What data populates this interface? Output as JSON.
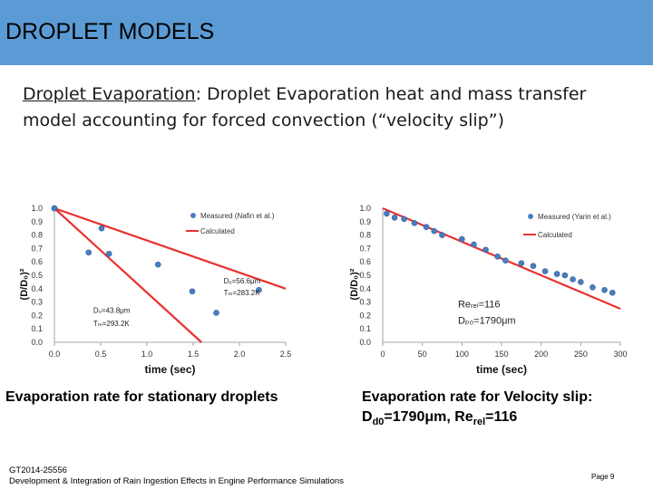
{
  "header": {
    "title": "DROPLET MODELS"
  },
  "intro": {
    "label": "Droplet Evaporation",
    "text": ": Droplet Evaporation heat and mass transfer model accounting for forced convection (“velocity slip”)"
  },
  "chart_data": [
    {
      "type": "scatter",
      "title": "",
      "xlabel": "time (sec)",
      "ylabel": "(D/D₀)²",
      "xlim": [
        0.0,
        2.5
      ],
      "ylim": [
        0.0,
        1.0
      ],
      "xticks": [
        "0.0",
        "0.5",
        "1.0",
        "1.5",
        "2.0",
        "2.5"
      ],
      "yticks": [
        "0.0",
        "0.1",
        "0.2",
        "0.3",
        "0.4",
        "0.5",
        "0.6",
        "0.7",
        "0.8",
        "0.9",
        "1.0"
      ],
      "legend": [
        "Measured (Nafin et al.)",
        "Calculated"
      ],
      "series": [
        {
          "name": "Measured (Nafin et al.)",
          "kind": "points",
          "x": [
            0.0,
            0.51,
            0.59,
            1.49,
            2.21,
            0.0,
            0.37,
            1.12,
            1.75
          ],
          "y": [
            1.0,
            0.85,
            0.66,
            0.38,
            0.39,
            1.0,
            0.67,
            0.58,
            0.22
          ]
        },
        {
          "name": "Calculated",
          "kind": "line",
          "segments": [
            {
              "x": [
                0.0,
                1.59
              ],
              "y": [
                1.0,
                0.0
              ]
            },
            {
              "x": [
                0.0,
                2.5
              ],
              "y": [
                1.0,
                0.4
              ]
            }
          ]
        }
      ],
      "annotations": [
        {
          "text": "D₀=56.6μm",
          "x": 1.83,
          "y": 0.44
        },
        {
          "text": "Tₘ=283.2K",
          "x": 1.83,
          "y": 0.35
        },
        {
          "text": "D₀=43.8μm",
          "x": 0.42,
          "y": 0.22
        },
        {
          "text": "Tₘ=293.2K",
          "x": 0.42,
          "y": 0.12
        }
      ]
    },
    {
      "type": "scatter",
      "title": "",
      "xlabel": "time (sec)",
      "ylabel": "(D/D₀)²",
      "xlim": [
        0,
        300
      ],
      "ylim": [
        0.0,
        1.0
      ],
      "xticks": [
        "0",
        "50",
        "100",
        "150",
        "200",
        "250",
        "300"
      ],
      "yticks": [
        "0.0",
        "0.1",
        "0.2",
        "0.3",
        "0.4",
        "0.5",
        "0.6",
        "0.7",
        "0.8",
        "0.9",
        "1.0"
      ],
      "legend": [
        "Measured (Yarin et al.)",
        "Calculated"
      ],
      "series": [
        {
          "name": "Measured (Yarin et al.)",
          "kind": "points",
          "x": [
            5,
            15,
            27,
            40,
            55,
            65,
            75,
            100,
            115,
            130,
            145,
            155,
            175,
            190,
            205,
            220,
            230,
            240,
            250,
            265,
            280,
            290
          ],
          "y": [
            0.96,
            0.93,
            0.92,
            0.89,
            0.86,
            0.83,
            0.8,
            0.77,
            0.73,
            0.69,
            0.64,
            0.61,
            0.59,
            0.57,
            0.53,
            0.51,
            0.5,
            0.47,
            0.45,
            0.41,
            0.39,
            0.37
          ]
        },
        {
          "name": "Calculated",
          "kind": "line",
          "segments": [
            {
              "x": [
                0,
                300
              ],
              "y": [
                1.0,
                0.25
              ]
            }
          ]
        }
      ],
      "annotations": [
        {
          "text": "Reᵣₑₗ=116",
          "x": 95,
          "y": 0.26
        },
        {
          "text": "Dₚ₀=1790μm",
          "x": 95,
          "y": 0.14
        }
      ]
    }
  ],
  "captions": {
    "left": "Evaporation rate for stationary droplets",
    "right_line1": "Evaporation rate for Velocity slip:",
    "right_dd0": "D",
    "right_dd0_sub": "d0",
    "right_mid": "=1790μm, Re",
    "right_rel_sub": "rel",
    "right_end": "=116"
  },
  "footer": {
    "line1": "GT2014-25556",
    "line2": "Development & Integration of Rain Ingestion Effects in Engine Performance Simulations",
    "page": "Page 9"
  },
  "colors": {
    "accent": "#5b9bd5",
    "marker": "#4a7ec0",
    "line": "#e8322f",
    "axis": "#a6a6a6"
  }
}
